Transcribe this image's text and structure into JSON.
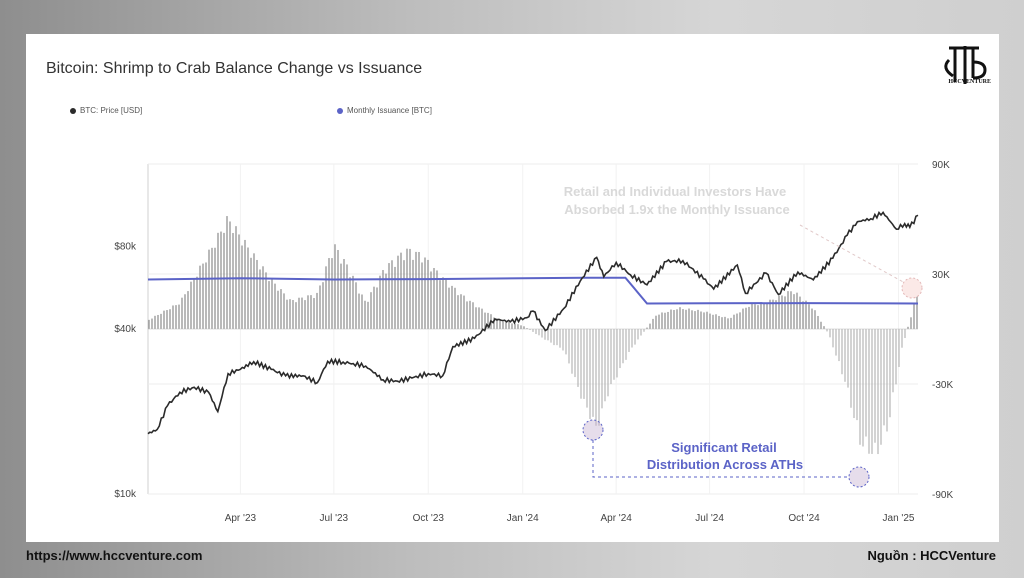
{
  "title": "Bitcoin: Shrimp to Crab Balance Change vs Issuance",
  "legend": {
    "price_label": "BTC: Price [USD]",
    "issuance_label": "Monthly Issuance [BTC]"
  },
  "logo": {
    "text": "HCCVENTURE"
  },
  "footer": {
    "url": "https://www.hccventure.com",
    "source": "Nguồn : HCCVenture"
  },
  "annotations": {
    "top_line1": "Retail and Individual Investors Have",
    "top_line2": "Absorbed 1.9x the Monthly Issuance",
    "mid_line1": "Significant Retail",
    "mid_line2": "Distribution Across ATHs"
  },
  "colors": {
    "price": "#2b2b2b",
    "issuance": "#5b63c7",
    "bars": "#9a9a9a",
    "annotation_top": "#d9d9d9",
    "annotation_mid": "#5b63c7",
    "highlight_circle": "#e8d0d0"
  },
  "chart_data": {
    "type": "line",
    "x_ticks": [
      "Apr '23",
      "Jul '23",
      "Oct '23",
      "Jan '24",
      "Apr '24",
      "Jul '24",
      "Oct '24",
      "Jan '25"
    ],
    "x_tick_dates": [
      "2023-04-01",
      "2023-07-01",
      "2023-10-01",
      "2024-01-01",
      "2024-04-01",
      "2024-07-01",
      "2024-10-01",
      "2025-01-01"
    ],
    "x_range": [
      "2023-01-01",
      "2025-01-20"
    ],
    "left_axis": {
      "scale": "log",
      "ticks": [
        "$80k",
        "$40k",
        "$10k"
      ],
      "tick_values": [
        80000,
        40000,
        10000
      ],
      "range": [
        10000,
        160000
      ]
    },
    "right_axis": {
      "ticks": [
        "90K",
        "30K",
        "-30K",
        "-90K"
      ],
      "tick_values": [
        90000,
        30000,
        -30000,
        -90000
      ],
      "range": [
        -90000,
        90000
      ]
    },
    "grid": true,
    "series": [
      {
        "name": "BTC: Price [USD]",
        "axis": "left",
        "points": [
          [
            "2023-01-01",
            16600
          ],
          [
            "2023-01-10",
            17200
          ],
          [
            "2023-01-20",
            21000
          ],
          [
            "2023-02-01",
            23500
          ],
          [
            "2023-02-15",
            24500
          ],
          [
            "2023-03-01",
            23500
          ],
          [
            "2023-03-10",
            20000
          ],
          [
            "2023-03-20",
            27500
          ],
          [
            "2023-04-01",
            28500
          ],
          [
            "2023-04-14",
            30400
          ],
          [
            "2023-05-01",
            28500
          ],
          [
            "2023-05-15",
            27000
          ],
          [
            "2023-06-01",
            27000
          ],
          [
            "2023-06-15",
            25500
          ],
          [
            "2023-06-25",
            30500
          ],
          [
            "2023-07-10",
            30300
          ],
          [
            "2023-07-20",
            29900
          ],
          [
            "2023-08-01",
            29300
          ],
          [
            "2023-08-18",
            26100
          ],
          [
            "2023-09-01",
            25800
          ],
          [
            "2023-09-15",
            26500
          ],
          [
            "2023-10-01",
            27500
          ],
          [
            "2023-10-15",
            27000
          ],
          [
            "2023-10-25",
            34500
          ],
          [
            "2023-11-15",
            37000
          ],
          [
            "2023-12-05",
            43500
          ],
          [
            "2023-12-20",
            42500
          ],
          [
            "2024-01-05",
            44000
          ],
          [
            "2024-01-11",
            46500
          ],
          [
            "2024-01-23",
            39500
          ],
          [
            "2024-02-10",
            47500
          ],
          [
            "2024-02-28",
            61500
          ],
          [
            "2024-03-13",
            73000
          ],
          [
            "2024-03-20",
            62000
          ],
          [
            "2024-04-01",
            70000
          ],
          [
            "2024-04-15",
            63000
          ],
          [
            "2024-05-01",
            58000
          ],
          [
            "2024-05-20",
            70500
          ],
          [
            "2024-06-05",
            71000
          ],
          [
            "2024-06-25",
            61000
          ],
          [
            "2024-07-05",
            56000
          ],
          [
            "2024-07-28",
            68500
          ],
          [
            "2024-08-05",
            54000
          ],
          [
            "2024-08-25",
            64000
          ],
          [
            "2024-09-06",
            53500
          ],
          [
            "2024-09-25",
            64500
          ],
          [
            "2024-10-10",
            60500
          ],
          [
            "2024-10-29",
            72500
          ],
          [
            "2024-11-12",
            88000
          ],
          [
            "2024-11-22",
            98500
          ],
          [
            "2024-12-05",
            101000
          ],
          [
            "2024-12-17",
            106500
          ],
          [
            "2024-12-30",
            92500
          ],
          [
            "2025-01-07",
            97000
          ],
          [
            "2025-01-12",
            94000
          ],
          [
            "2025-01-20",
            104000
          ]
        ]
      },
      {
        "name": "Monthly Issuance [BTC]",
        "axis": "right",
        "points": [
          [
            "2023-01-01",
            27000
          ],
          [
            "2023-04-01",
            27700
          ],
          [
            "2023-07-01",
            27000
          ],
          [
            "2023-10-01",
            27200
          ],
          [
            "2024-01-01",
            27700
          ],
          [
            "2024-03-01",
            28000
          ],
          [
            "2024-04-10",
            28000
          ],
          [
            "2024-05-01",
            13900
          ],
          [
            "2024-07-01",
            14000
          ],
          [
            "2024-10-01",
            14100
          ],
          [
            "2025-01-20",
            13900
          ]
        ]
      },
      {
        "name": "Shrimp to Crab Balance Change",
        "axis": "right",
        "type": "bar",
        "points": [
          [
            "2023-01-01",
            5000
          ],
          [
            "2023-02-01",
            15000
          ],
          [
            "2023-03-01",
            43000
          ],
          [
            "2023-03-20",
            63000
          ],
          [
            "2023-04-10",
            45000
          ],
          [
            "2023-05-01",
            28000
          ],
          [
            "2023-05-20",
            16000
          ],
          [
            "2023-06-15",
            20000
          ],
          [
            "2023-07-01",
            48000
          ],
          [
            "2023-07-15",
            35000
          ],
          [
            "2023-08-01",
            15000
          ],
          [
            "2023-08-20",
            35000
          ],
          [
            "2023-09-10",
            45000
          ],
          [
            "2023-09-25",
            42000
          ],
          [
            "2023-10-10",
            32000
          ],
          [
            "2023-11-01",
            20000
          ],
          [
            "2023-11-20",
            12000
          ],
          [
            "2023-12-10",
            5000
          ],
          [
            "2024-01-01",
            2000
          ],
          [
            "2024-01-20",
            -5000
          ],
          [
            "2024-02-10",
            -12000
          ],
          [
            "2024-02-28",
            -40000
          ],
          [
            "2024-03-13",
            -57000
          ],
          [
            "2024-03-25",
            -35000
          ],
          [
            "2024-04-15",
            -12000
          ],
          [
            "2024-05-10",
            8000
          ],
          [
            "2024-06-01",
            12000
          ],
          [
            "2024-06-25",
            10000
          ],
          [
            "2024-07-20",
            6000
          ],
          [
            "2024-08-10",
            14000
          ],
          [
            "2024-08-25",
            15000
          ],
          [
            "2024-09-20",
            22000
          ],
          [
            "2024-10-10",
            12000
          ],
          [
            "2024-10-25",
            -3000
          ],
          [
            "2024-11-10",
            -30000
          ],
          [
            "2024-11-25",
            -65000
          ],
          [
            "2024-12-10",
            -72000
          ],
          [
            "2024-12-22",
            -55000
          ],
          [
            "2025-01-05",
            -10000
          ],
          [
            "2025-01-20",
            22000
          ]
        ]
      }
    ]
  }
}
